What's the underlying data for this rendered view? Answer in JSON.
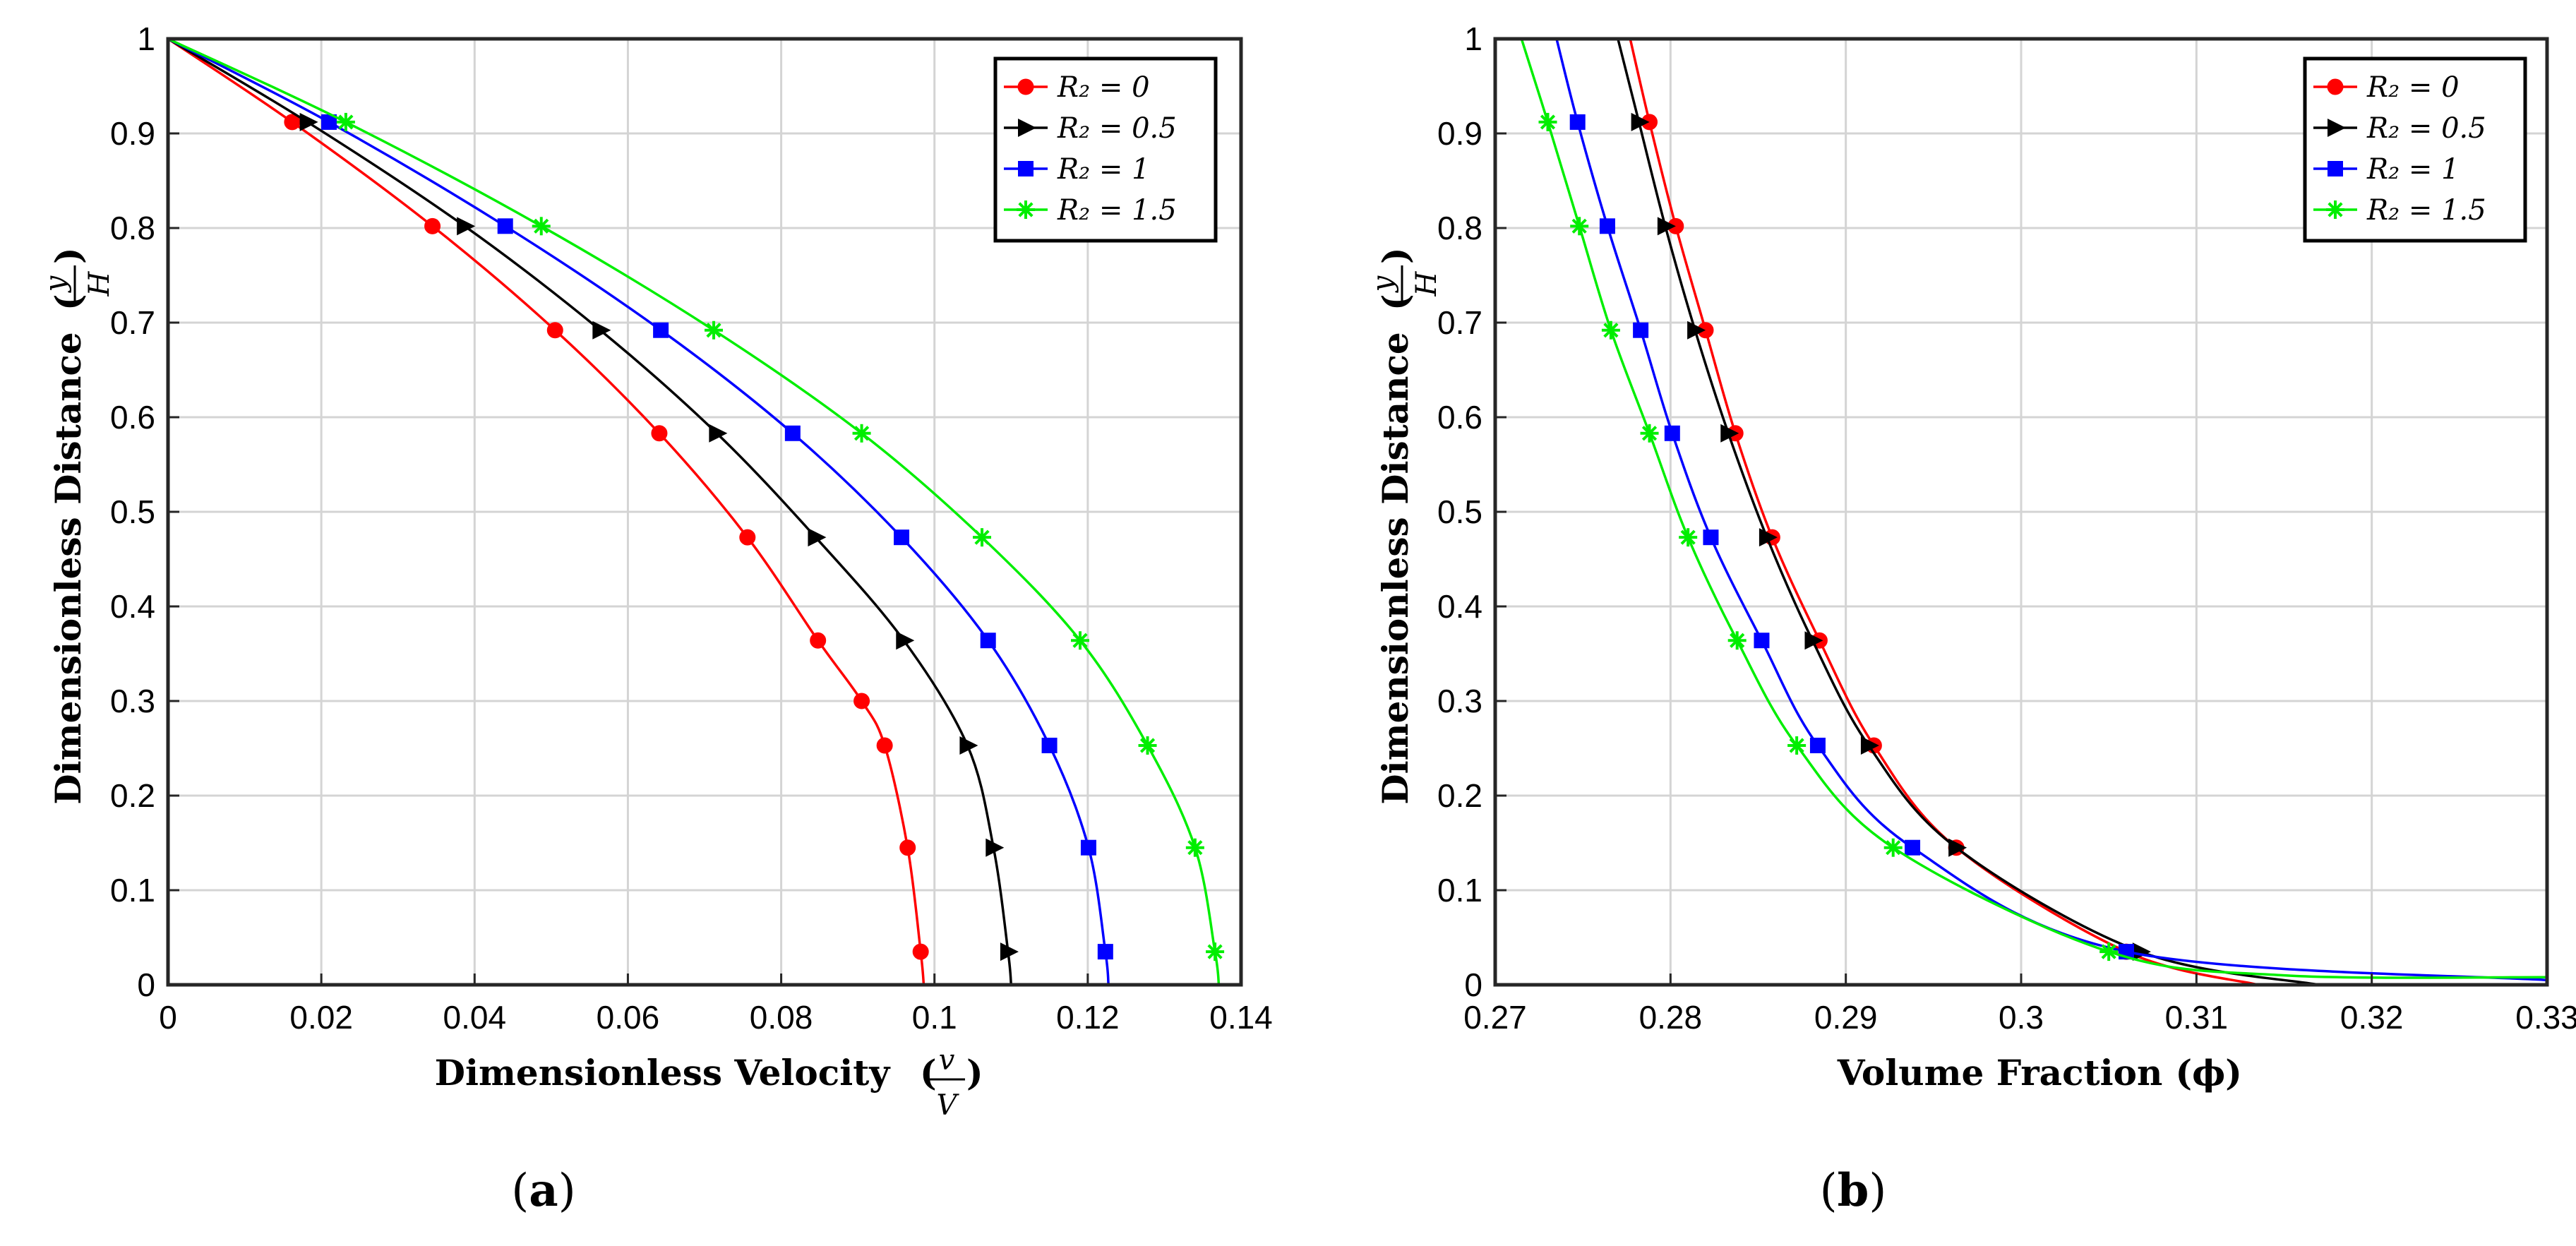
{
  "chart_data": [
    {
      "type": "line",
      "panel_label": "(a)",
      "panel_letter": "a",
      "xlabel": "Dimensionless Velocity",
      "xlabel_fraction": {
        "num": "v",
        "den": "V"
      },
      "ylabel": "Dimensionless Distance",
      "ylabel_fraction": {
        "num": "y",
        "den": "H"
      },
      "xlim": [
        0,
        0.14
      ],
      "ylim": [
        0,
        1
      ],
      "xticks": [
        0,
        0.02,
        0.04,
        0.06,
        0.08,
        0.1,
        0.12,
        0.14
      ],
      "xtick_labels": [
        "0",
        "0.02",
        "0.04",
        "0.06",
        "0.08",
        "0.1",
        "0.12",
        "0.14"
      ],
      "yticks": [
        0,
        0.1,
        0.2,
        0.3,
        0.4,
        0.5,
        0.6,
        0.7,
        0.8,
        0.9,
        1
      ],
      "ytick_labels": [
        "0",
        "0.1",
        "0.2",
        "0.3",
        "0.4",
        "0.5",
        "0.6",
        "0.7",
        "0.8",
        "0.9",
        "1"
      ],
      "grid": true,
      "legend_position": "top-right",
      "series": [
        {
          "name": "R₂ = 0",
          "color": "#ff0000",
          "marker": "circle",
          "x": [
            0.0986,
            0.0982,
            0.0965,
            0.0935,
            0.0905,
            0.0848,
            0.0756,
            0.0641,
            0.0505,
            0.0345,
            0.0162,
            0
          ],
          "y": [
            0,
            0.035,
            0.145,
            0.253,
            0.3,
            0.364,
            0.473,
            0.583,
            0.692,
            0.802,
            0.912,
            1
          ]
        },
        {
          "name": "R₂ = 0.5",
          "color": "#000000",
          "marker": "triangle-right",
          "x": [
            0.11,
            0.1096,
            0.1077,
            0.1043,
            0.096,
            0.0845,
            0.0716,
            0.0564,
            0.0387,
            0.0182,
            0
          ],
          "y": [
            0,
            0.035,
            0.145,
            0.253,
            0.364,
            0.473,
            0.583,
            0.692,
            0.802,
            0.912,
            1
          ]
        },
        {
          "name": "R₂ = 1",
          "color": "#0000ff",
          "marker": "square",
          "x": [
            0.1227,
            0.1223,
            0.1201,
            0.115,
            0.107,
            0.0957,
            0.0815,
            0.0643,
            0.044,
            0.021,
            0
          ],
          "y": [
            0,
            0.035,
            0.145,
            0.253,
            0.364,
            0.473,
            0.583,
            0.692,
            0.802,
            0.912,
            1
          ]
        },
        {
          "name": "R₂ = 1.5",
          "color": "#00ee00",
          "marker": "star",
          "x": [
            0.1371,
            0.1366,
            0.134,
            0.1278,
            0.119,
            0.1062,
            0.0905,
            0.0712,
            0.0487,
            0.0232,
            0
          ],
          "y": [
            0,
            0.035,
            0.145,
            0.253,
            0.364,
            0.473,
            0.583,
            0.692,
            0.802,
            0.912,
            1
          ]
        }
      ]
    },
    {
      "type": "line",
      "panel_label": "(b)",
      "panel_letter": "b",
      "xlabel": "Volume Fraction",
      "xlabel_symbol": "(ϕ)",
      "ylabel": "Dimensionless Distance",
      "ylabel_fraction": {
        "num": "y",
        "den": "H"
      },
      "xlim": [
        0.27,
        0.33
      ],
      "ylim": [
        0,
        1
      ],
      "xticks": [
        0.27,
        0.28,
        0.29,
        0.3,
        0.31,
        0.32,
        0.33
      ],
      "xtick_labels": [
        "0.27",
        "0.28",
        "0.29",
        "0.3",
        "0.31",
        "0.32",
        "0.33"
      ],
      "yticks": [
        0,
        0.1,
        0.2,
        0.3,
        0.4,
        0.5,
        0.6,
        0.7,
        0.8,
        0.9,
        1
      ],
      "ytick_labels": [
        "0",
        "0.1",
        "0.2",
        "0.3",
        "0.4",
        "0.5",
        "0.6",
        "0.7",
        "0.8",
        "0.9",
        "1"
      ],
      "grid": true,
      "legend_position": "top-right",
      "series": [
        {
          "name": "R₂ = 0",
          "color": "#ff0000",
          "marker": "circle",
          "x": [
            0.3135,
            0.306,
            0.2963,
            0.2916,
            0.2885,
            0.2858,
            0.2837,
            0.282,
            0.2803,
            0.2788,
            0.2777
          ],
          "y": [
            0,
            0.035,
            0.145,
            0.253,
            0.364,
            0.473,
            0.583,
            0.692,
            0.802,
            0.912,
            1
          ]
        },
        {
          "name": "R₂ = 0.5",
          "color": "#000000",
          "marker": "triangle-right",
          "x": [
            0.317,
            0.3068,
            0.2963,
            0.2913,
            0.2881,
            0.2855,
            0.2833,
            0.2814,
            0.2797,
            0.2782,
            0.277
          ],
          "y": [
            0,
            0.035,
            0.145,
            0.253,
            0.364,
            0.473,
            0.583,
            0.692,
            0.802,
            0.912,
            1
          ]
        },
        {
          "name": "R₂ = 1",
          "color": "#0000ff",
          "marker": "square",
          "x": [
            0.33,
            0.306,
            0.2938,
            0.2884,
            0.2852,
            0.2823,
            0.2801,
            0.2783,
            0.2764,
            0.2747,
            0.2735
          ],
          "y": [
            0.005,
            0.035,
            0.145,
            0.253,
            0.364,
            0.473,
            0.583,
            0.692,
            0.802,
            0.912,
            1
          ]
        },
        {
          "name": "R₂ = 1.5",
          "color": "#00ee00",
          "marker": "star",
          "x": [
            0.33,
            0.315,
            0.305,
            0.2927,
            0.2872,
            0.2838,
            0.281,
            0.2788,
            0.2766,
            0.2748,
            0.273,
            0.2715
          ],
          "y": [
            0.008,
            0.01,
            0.035,
            0.145,
            0.253,
            0.364,
            0.473,
            0.583,
            0.692,
            0.802,
            0.912,
            1
          ]
        }
      ]
    }
  ]
}
